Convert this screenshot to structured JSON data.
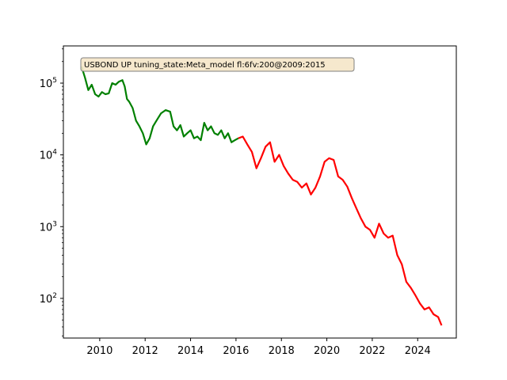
{
  "chart_data": {
    "type": "line",
    "title": "",
    "xlabel": "",
    "ylabel": "",
    "y_scale": "log",
    "xlim": [
      2008.4,
      2025.7
    ],
    "ylim": [
      28,
      330000
    ],
    "grid": false,
    "legend": "none",
    "annotation": "USBOND UP tuning_state:Meta_model fl:6fv:200@2009:2015",
    "x_ticks": [
      {
        "value": 2010,
        "label": "2010"
      },
      {
        "value": 2012,
        "label": "2012"
      },
      {
        "value": 2014,
        "label": "2014"
      },
      {
        "value": 2016,
        "label": "2016"
      },
      {
        "value": 2018,
        "label": "2018"
      },
      {
        "value": 2020,
        "label": "2020"
      },
      {
        "value": 2022,
        "label": "2022"
      },
      {
        "value": 2024,
        "label": "2024"
      }
    ],
    "y_ticks": [
      {
        "value": 100,
        "base": "10",
        "exp": "2"
      },
      {
        "value": 1000,
        "base": "10",
        "exp": "3"
      },
      {
        "value": 10000,
        "base": "10",
        "exp": "4"
      },
      {
        "value": 100000,
        "base": "10",
        "exp": "5"
      }
    ],
    "series": [
      {
        "color": "#008000",
        "x": [
          2009.2,
          2009.35,
          2009.5,
          2009.65,
          2009.8,
          2009.95,
          2010.1,
          2010.25,
          2010.4,
          2010.55,
          2010.7,
          2010.85,
          2011.0,
          2011.1,
          2011.2,
          2011.3,
          2011.45,
          2011.6,
          2011.75,
          2011.9,
          2012.05,
          2012.2,
          2012.35,
          2012.5,
          2012.7,
          2012.9,
          2013.1,
          2013.25,
          2013.4,
          2013.55,
          2013.7,
          2013.85,
          2014.0,
          2014.15,
          2014.3,
          2014.45,
          2014.6,
          2014.75,
          2014.9,
          2015.05,
          2015.2,
          2015.35,
          2015.5,
          2015.65,
          2015.8,
          2015.95,
          2016.1
        ],
        "y": [
          170000,
          120000,
          80000,
          95000,
          70000,
          65000,
          75000,
          70000,
          72000,
          100000,
          95000,
          105000,
          110000,
          90000,
          60000,
          55000,
          45000,
          30000,
          25000,
          20000,
          14000,
          17000,
          25000,
          30000,
          38000,
          42000,
          40000,
          25000,
          22000,
          26000,
          18000,
          20000,
          22000,
          17000,
          18000,
          16000,
          28000,
          22000,
          25000,
          20000,
          19000,
          22000,
          17000,
          20000,
          15000,
          16000,
          17000
        ]
      },
      {
        "color": "#ff0000",
        "x": [
          2016.1,
          2016.3,
          2016.5,
          2016.7,
          2016.9,
          2017.1,
          2017.3,
          2017.5,
          2017.7,
          2017.9,
          2018.1,
          2018.3,
          2018.5,
          2018.7,
          2018.9,
          2019.1,
          2019.3,
          2019.5,
          2019.7,
          2019.9,
          2020.1,
          2020.3,
          2020.5,
          2020.7,
          2020.9,
          2021.1,
          2021.3,
          2021.5,
          2021.7,
          2021.9,
          2022.1,
          2022.3,
          2022.5,
          2022.7,
          2022.9,
          2023.1,
          2023.3,
          2023.5,
          2023.7,
          2023.9,
          2024.1,
          2024.3,
          2024.5,
          2024.7,
          2024.9,
          2025.05
        ],
        "y": [
          17000,
          18000,
          14000,
          11000,
          6500,
          9000,
          13000,
          15000,
          8000,
          10000,
          7000,
          5500,
          4500,
          4200,
          3500,
          4000,
          2800,
          3500,
          5000,
          8000,
          9000,
          8500,
          5000,
          4500,
          3600,
          2500,
          1800,
          1300,
          1000,
          900,
          700,
          1100,
          800,
          700,
          750,
          400,
          300,
          170,
          140,
          110,
          85,
          70,
          75,
          60,
          55,
          42
        ]
      }
    ]
  }
}
